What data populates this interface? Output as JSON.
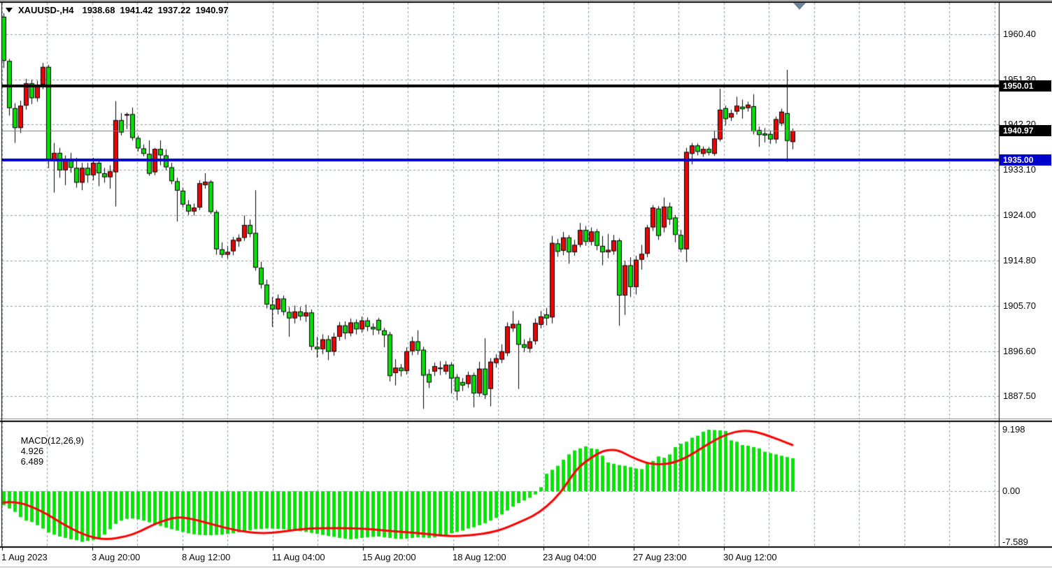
{
  "title": {
    "symbol_period": "XAUUSD-,H4",
    "open": "1938.68",
    "high": "1941.42",
    "low": "1937.22",
    "close": "1940.97"
  },
  "indicator": {
    "label": "MACD(12,26,9)",
    "main_value": "4.926",
    "signal_value": "6.489"
  },
  "price_axis": {
    "labels": [
      "1960.40",
      "1951.30",
      "1942.20",
      "1933.10",
      "1924.00",
      "1914.80",
      "1905.70",
      "1896.60",
      "1887.50"
    ]
  },
  "macd_axis": {
    "max_label": "9.198",
    "zero_label": "0.00",
    "min_label": "-7.589"
  },
  "time_axis": {
    "labels": [
      "1 Aug 2023",
      "3 Aug 20:00",
      "8 Aug 12:00",
      "11 Aug 04:00",
      "15 Aug 20:00",
      "18 Aug 12:00",
      "23 Aug 04:00",
      "27 Aug 23:00",
      "30 Aug 12:00"
    ]
  },
  "price_markers": [
    {
      "label": "1950.01",
      "price": 1950.01,
      "bg": "#000000",
      "line_color": "#000000",
      "line_width": 4
    },
    {
      "label": "1940.97",
      "price": 1940.97,
      "bg": "#000000",
      "line_color": "#808080",
      "line_width": 1
    },
    {
      "label": "1935.00",
      "price": 1935.0,
      "bg": "#0000CC",
      "line_color": "#0000CC",
      "line_width": 4
    }
  ],
  "colors": {
    "bull": "#F20000",
    "bear": "#00E000",
    "wick": "#000000",
    "grid": "#8A9AAA",
    "hist": "#00E800",
    "signal": "#FF0000",
    "marker_triangle": "#6F8396"
  },
  "chart_data": {
    "type": "candlestick",
    "symbol": "XAUUSD-",
    "timeframe": "H4",
    "title": "XAUUSD-,H4  1938.68 1941.42 1937.22 1940.97",
    "price_gridlines": [
      1960.4,
      1951.3,
      1942.2,
      1933.1,
      1924.0,
      1914.8,
      1905.7,
      1896.6,
      1887.5
    ],
    "ylim_main": [
      1883.0,
      1967.0
    ],
    "macd_range": [
      -7.589,
      9.198
    ],
    "bars": [
      [
        1963.9,
        1964.6,
        1953.6,
        1955.0
      ],
      [
        1955.0,
        1955.4,
        1944.0,
        1945.5
      ],
      [
        1945.5,
        1946.5,
        1938.5,
        1941.5
      ],
      [
        1941.5,
        1947.0,
        1940.5,
        1946.0
      ],
      [
        1946.0,
        1951.4,
        1945.2,
        1950.5
      ],
      [
        1950.5,
        1951.2,
        1946.3,
        1947.5
      ],
      [
        1947.5,
        1951.0,
        1946.8,
        1950.2
      ],
      [
        1950.2,
        1954.6,
        1949.3,
        1953.8
      ],
      [
        1953.8,
        1954.2,
        1933.4,
        1935.1
      ],
      [
        1935.1,
        1938.5,
        1928.5,
        1936.5
      ],
      [
        1936.5,
        1937.5,
        1931.5,
        1933.0
      ],
      [
        1933.0,
        1936.0,
        1930.0,
        1935.0
      ],
      [
        1935.0,
        1936.5,
        1932.5,
        1933.5
      ],
      [
        1933.5,
        1935.5,
        1929.5,
        1930.5
      ],
      [
        1930.5,
        1934.5,
        1929.0,
        1933.5
      ],
      [
        1933.5,
        1934.5,
        1930.5,
        1932.0
      ],
      [
        1932.0,
        1935.5,
        1931.0,
        1934.5
      ],
      [
        1934.5,
        1935.0,
        1929.8,
        1932.4
      ],
      [
        1932.4,
        1933.5,
        1930.5,
        1931.6
      ],
      [
        1931.6,
        1934.0,
        1929.3,
        1932.8
      ],
      [
        1932.6,
        1946.9,
        1925.7,
        1943.1
      ],
      [
        1943.1,
        1944.5,
        1940.0,
        1940.6
      ],
      [
        1944.0,
        1944.6,
        1941.3,
        1944.3
      ],
      [
        1944.3,
        1945.6,
        1939.0,
        1939.5
      ],
      [
        1939.5,
        1940.0,
        1936.8,
        1937.4
      ],
      [
        1937.4,
        1938.2,
        1935.8,
        1936.3
      ],
      [
        1936.3,
        1939.0,
        1931.9,
        1932.3
      ],
      [
        1932.6,
        1937.5,
        1932.0,
        1937.3
      ],
      [
        1937.3,
        1939.0,
        1934.0,
        1936.0
      ],
      [
        1936.0,
        1937.2,
        1933.0,
        1933.6
      ],
      [
        1933.6,
        1934.5,
        1930.2,
        1930.8
      ],
      [
        1930.8,
        1931.5,
        1922.7,
        1928.9
      ],
      [
        1928.9,
        1929.5,
        1925.5,
        1926.1
      ],
      [
        1926.1,
        1927.0,
        1924.0,
        1924.7
      ],
      [
        1924.7,
        1926.3,
        1923.9,
        1925.5
      ],
      [
        1925.5,
        1931.0,
        1925.0,
        1930.4
      ],
      [
        1930.0,
        1932.4,
        1929.3,
        1930.7
      ],
      [
        1930.7,
        1931.0,
        1924.2,
        1924.6
      ],
      [
        1924.6,
        1925.0,
        1916.0,
        1917.1
      ],
      [
        1917.1,
        1918.5,
        1915.4,
        1916.0
      ],
      [
        1916.0,
        1917.8,
        1915.2,
        1916.6
      ],
      [
        1916.7,
        1919.6,
        1915.9,
        1919.0
      ],
      [
        1918.7,
        1920.1,
        1917.6,
        1919.4
      ],
      [
        1919.4,
        1923.9,
        1918.8,
        1922.0
      ],
      [
        1922.0,
        1923.1,
        1919.5,
        1920.2
      ],
      [
        1920.4,
        1929.0,
        1912.8,
        1913.4
      ],
      [
        1913.4,
        1914.6,
        1909.2,
        1910.0
      ],
      [
        1910.0,
        1911.0,
        1905.2,
        1906.0
      ],
      [
        1906.0,
        1907.5,
        1901.5,
        1905.0
      ],
      [
        1905.0,
        1908.0,
        1904.0,
        1907.2
      ],
      [
        1907.2,
        1907.8,
        1903.8,
        1904.5
      ],
      [
        1904.5,
        1905.5,
        1899.5,
        1903.2
      ],
      [
        1903.2,
        1905.8,
        1902.2,
        1904.6
      ],
      [
        1904.6,
        1905.5,
        1902.8,
        1903.6
      ],
      [
        1903.6,
        1906.0,
        1902.5,
        1904.4
      ],
      [
        1904.4,
        1905.0,
        1896.8,
        1897.5
      ],
      [
        1897.5,
        1899.5,
        1895.3,
        1897.0
      ],
      [
        1897.0,
        1900.0,
        1896.0,
        1899.0
      ],
      [
        1899.0,
        1899.8,
        1894.8,
        1896.5
      ],
      [
        1896.5,
        1900.3,
        1895.7,
        1899.5
      ],
      [
        1899.5,
        1902.5,
        1898.7,
        1901.8
      ],
      [
        1901.8,
        1902.6,
        1899.0,
        1900.2
      ],
      [
        1900.2,
        1903.2,
        1899.6,
        1902.4
      ],
      [
        1902.4,
        1903.0,
        1900.0,
        1901.0
      ],
      [
        1901.0,
        1903.6,
        1900.3,
        1902.8
      ],
      [
        1902.8,
        1903.4,
        1900.6,
        1901.5
      ],
      [
        1901.5,
        1902.2,
        1899.8,
        1901.0
      ],
      [
        1902.9,
        1903.3,
        1900.0,
        1900.8
      ],
      [
        1900.8,
        1901.3,
        1897.4,
        1899.8
      ],
      [
        1900.0,
        1900.5,
        1890.5,
        1891.6
      ],
      [
        1892.2,
        1895.0,
        1889.7,
        1893.3
      ],
      [
        1893.3,
        1894.0,
        1891.5,
        1892.6
      ],
      [
        1892.6,
        1897.4,
        1891.9,
        1896.6
      ],
      [
        1896.6,
        1899.5,
        1895.8,
        1898.6
      ],
      [
        1898.6,
        1900.8,
        1895.9,
        1896.7
      ],
      [
        1896.9,
        1897.5,
        1885.0,
        1891.7
      ],
      [
        1892.0,
        1893.0,
        1889.2,
        1890.3
      ],
      [
        1892.5,
        1894.3,
        1891.6,
        1893.6
      ],
      [
        1893.3,
        1894.6,
        1891.8,
        1893.0
      ],
      [
        1892.5,
        1894.6,
        1891.9,
        1893.9
      ],
      [
        1893.9,
        1894.4,
        1888.1,
        1891.1
      ],
      [
        1891.4,
        1892.0,
        1886.7,
        1888.5
      ],
      [
        1890.4,
        1891.2,
        1888.6,
        1889.7
      ],
      [
        1890.0,
        1892.5,
        1889.2,
        1891.8
      ],
      [
        1891.8,
        1892.3,
        1885.3,
        1888.1
      ],
      [
        1888.1,
        1894.5,
        1887.4,
        1893.1
      ],
      [
        1893.1,
        1899.2,
        1887.0,
        1887.8
      ],
      [
        1889.0,
        1895.2,
        1885.5,
        1894.5
      ],
      [
        1894.2,
        1896.0,
        1893.3,
        1895.2
      ],
      [
        1894.9,
        1898.0,
        1894.2,
        1896.6
      ],
      [
        1896.2,
        1902.4,
        1895.6,
        1901.6
      ],
      [
        1901.2,
        1904.7,
        1900.5,
        1902.1
      ],
      [
        1902.1,
        1902.8,
        1889.0,
        1897.9
      ],
      [
        1898.0,
        1899.0,
        1896.4,
        1897.3
      ],
      [
        1897.1,
        1899.3,
        1896.3,
        1898.6
      ],
      [
        1898.6,
        1903.2,
        1897.9,
        1902.3
      ],
      [
        1901.9,
        1904.7,
        1901.2,
        1903.6
      ],
      [
        1904.0,
        1905.3,
        1901.8,
        1903.2
      ],
      [
        1903.4,
        1919.8,
        1902.2,
        1918.4
      ],
      [
        1918.3,
        1919.2,
        1915.6,
        1916.6
      ],
      [
        1916.8,
        1920.6,
        1915.9,
        1919.5
      ],
      [
        1919.5,
        1920.0,
        1914.2,
        1916.5
      ],
      [
        1916.5,
        1919.0,
        1915.8,
        1918.0
      ],
      [
        1918.0,
        1922.4,
        1917.5,
        1921.0
      ],
      [
        1921.0,
        1921.8,
        1917.8,
        1918.6
      ],
      [
        1918.6,
        1921.5,
        1917.9,
        1920.7
      ],
      [
        1920.7,
        1921.2,
        1916.9,
        1917.8
      ],
      [
        1917.8,
        1919.8,
        1913.9,
        1916.5
      ],
      [
        1916.5,
        1920.2,
        1915.3,
        1917.0
      ],
      [
        1916.7,
        1920.0,
        1916.0,
        1918.9
      ],
      [
        1918.9,
        1919.3,
        1901.7,
        1907.8
      ],
      [
        1907.8,
        1914.8,
        1903.9,
        1913.9
      ],
      [
        1913.9,
        1915.5,
        1907.5,
        1909.5
      ],
      [
        1909.5,
        1915.8,
        1908.0,
        1915.0
      ],
      [
        1915.0,
        1918.0,
        1913.0,
        1916.2
      ],
      [
        1916.2,
        1922.0,
        1915.5,
        1921.5
      ],
      [
        1921.5,
        1926.0,
        1920.8,
        1925.5
      ],
      [
        1925.3,
        1925.8,
        1919.0,
        1919.8
      ],
      [
        1921.5,
        1927.5,
        1920.5,
        1925.7
      ],
      [
        1925.7,
        1926.5,
        1922.0,
        1923.1
      ],
      [
        1923.5,
        1924.0,
        1918.5,
        1920.0
      ],
      [
        1920.0,
        1921.0,
        1916.5,
        1917.1
      ],
      [
        1917.1,
        1937.5,
        1914.5,
        1936.7
      ],
      [
        1936.3,
        1938.5,
        1934.2,
        1938.0
      ],
      [
        1938.0,
        1938.4,
        1936.0,
        1936.7
      ],
      [
        1936.3,
        1937.8,
        1935.7,
        1937.3
      ],
      [
        1937.3,
        1937.7,
        1936.0,
        1936.5
      ],
      [
        1936.3,
        1941.0,
        1935.9,
        1939.4
      ],
      [
        1939.2,
        1949.4,
        1938.8,
        1945.2
      ],
      [
        1945.5,
        1946.0,
        1942.0,
        1943.3
      ],
      [
        1943.6,
        1945.2,
        1942.9,
        1944.5
      ],
      [
        1944.8,
        1947.8,
        1944.2,
        1946.0
      ],
      [
        1945.8,
        1947.2,
        1943.4,
        1945.3
      ],
      [
        1945.5,
        1946.8,
        1944.8,
        1946.2
      ],
      [
        1945.9,
        1948.3,
        1940.2,
        1940.8
      ],
      [
        1941.1,
        1941.8,
        1937.7,
        1940.1
      ],
      [
        1940.4,
        1941.5,
        1938.6,
        1940.0
      ],
      [
        1940.3,
        1941.0,
        1938.3,
        1939.2
      ],
      [
        1939.2,
        1943.8,
        1938.4,
        1943.3
      ],
      [
        1942.4,
        1945.4,
        1941.9,
        1944.8
      ],
      [
        1944.5,
        1953.2,
        1934.7,
        1938.9
      ],
      [
        1938.68,
        1941.42,
        1937.22,
        1940.97
      ]
    ],
    "macd": {
      "params": "12,26,9",
      "hist": [
        -2.1,
        -2.6,
        -3.1,
        -3.9,
        -4.4,
        -4.6,
        -5.1,
        -5.6,
        -6.2,
        -6.5,
        -6.8,
        -7.0,
        -7.2,
        -7.35,
        -7.589,
        -7.45,
        -7.3,
        -7.0,
        -6.5,
        -5.7,
        -4.9,
        -4.4,
        -4.15,
        -4.1,
        -4.2,
        -4.4,
        -4.65,
        -4.9,
        -5.2,
        -5.45,
        -5.7,
        -5.9,
        -6.1,
        -6.3,
        -6.45,
        -6.55,
        -6.6,
        -6.6,
        -6.55,
        -6.5,
        -6.4,
        -6.3,
        -6.15,
        -6.0,
        -5.85,
        -5.7,
        -5.65,
        -5.6,
        -5.6,
        -5.65,
        -5.7,
        -5.8,
        -5.9,
        -6.0,
        -6.1,
        -6.25,
        -6.4,
        -6.55,
        -6.7,
        -6.85,
        -7.0,
        -7.1,
        -7.2,
        -7.1,
        -7.0,
        -6.9,
        -6.85,
        -6.8,
        -6.9,
        -7.0,
        -7.1,
        -7.15,
        -7.1,
        -7.0,
        -6.9,
        -6.95,
        -7.0,
        -6.9,
        -6.75,
        -6.55,
        -6.3,
        -6.1,
        -5.9,
        -5.6,
        -5.4,
        -5.1,
        -4.8,
        -4.4,
        -4.0,
        -3.5,
        -2.9,
        -2.3,
        -1.8,
        -1.4,
        -1.0,
        -0.5,
        0.6,
        2.6,
        3.2,
        3.8,
        4.7,
        5.5,
        6.1,
        6.4,
        6.7,
        6.4,
        6.3,
        5.3,
        4.3,
        4.1,
        3.9,
        3.8,
        3.6,
        3.4,
        3.3,
        4.2,
        4.5,
        5.2,
        5.0,
        5.5,
        6.6,
        7.1,
        7.4,
        8.0,
        8.3,
        8.9,
        9.198,
        9.15,
        9.1,
        9.0,
        7.6,
        7.4,
        6.9,
        6.8,
        6.6,
        6.4,
        5.9,
        5.7,
        5.5,
        5.3,
        5.1,
        4.926
      ],
      "signal_points": [
        [
          0,
          -1.7
        ],
        [
          2.5,
          -1.5
        ],
        [
          7,
          -3.0
        ],
        [
          10.5,
          -4.9
        ],
        [
          14.5,
          -6.6
        ],
        [
          18,
          -7.3
        ],
        [
          22,
          -6.8
        ],
        [
          24.5,
          -6.0
        ],
        [
          27,
          -4.9
        ],
        [
          30.5,
          -3.9
        ],
        [
          33,
          -4.0
        ],
        [
          37,
          -4.9
        ],
        [
          42,
          -6.0
        ],
        [
          47,
          -6.4
        ],
        [
          52,
          -5.8
        ],
        [
          56,
          -5.5
        ],
        [
          64.5,
          -5.6
        ],
        [
          69.5,
          -6.0
        ],
        [
          74.5,
          -6.3
        ],
        [
          80.5,
          -6.8
        ],
        [
          84.5,
          -6.5
        ],
        [
          87,
          -6.2
        ],
        [
          89.5,
          -5.6
        ],
        [
          92,
          -4.7
        ],
        [
          94.5,
          -3.8
        ],
        [
          97,
          -2.4
        ],
        [
          99.5,
          -0.3
        ],
        [
          101.5,
          2.2
        ],
        [
          103,
          3.8
        ],
        [
          105,
          5.0
        ],
        [
          107,
          6.0
        ],
        [
          108.5,
          6.2
        ],
        [
          110,
          6.1
        ],
        [
          112,
          5.2
        ],
        [
          114,
          4.5
        ],
        [
          115.5,
          4.1
        ],
        [
          117.5,
          4.0
        ],
        [
          119.5,
          4.2
        ],
        [
          122,
          5.0
        ],
        [
          124.5,
          6.3
        ],
        [
          127,
          7.6
        ],
        [
          129.5,
          8.6
        ],
        [
          132,
          9.1
        ],
        [
          134.5,
          8.9
        ],
        [
          137,
          8.2
        ],
        [
          139.5,
          7.4
        ],
        [
          141,
          6.9
        ]
      ]
    }
  }
}
